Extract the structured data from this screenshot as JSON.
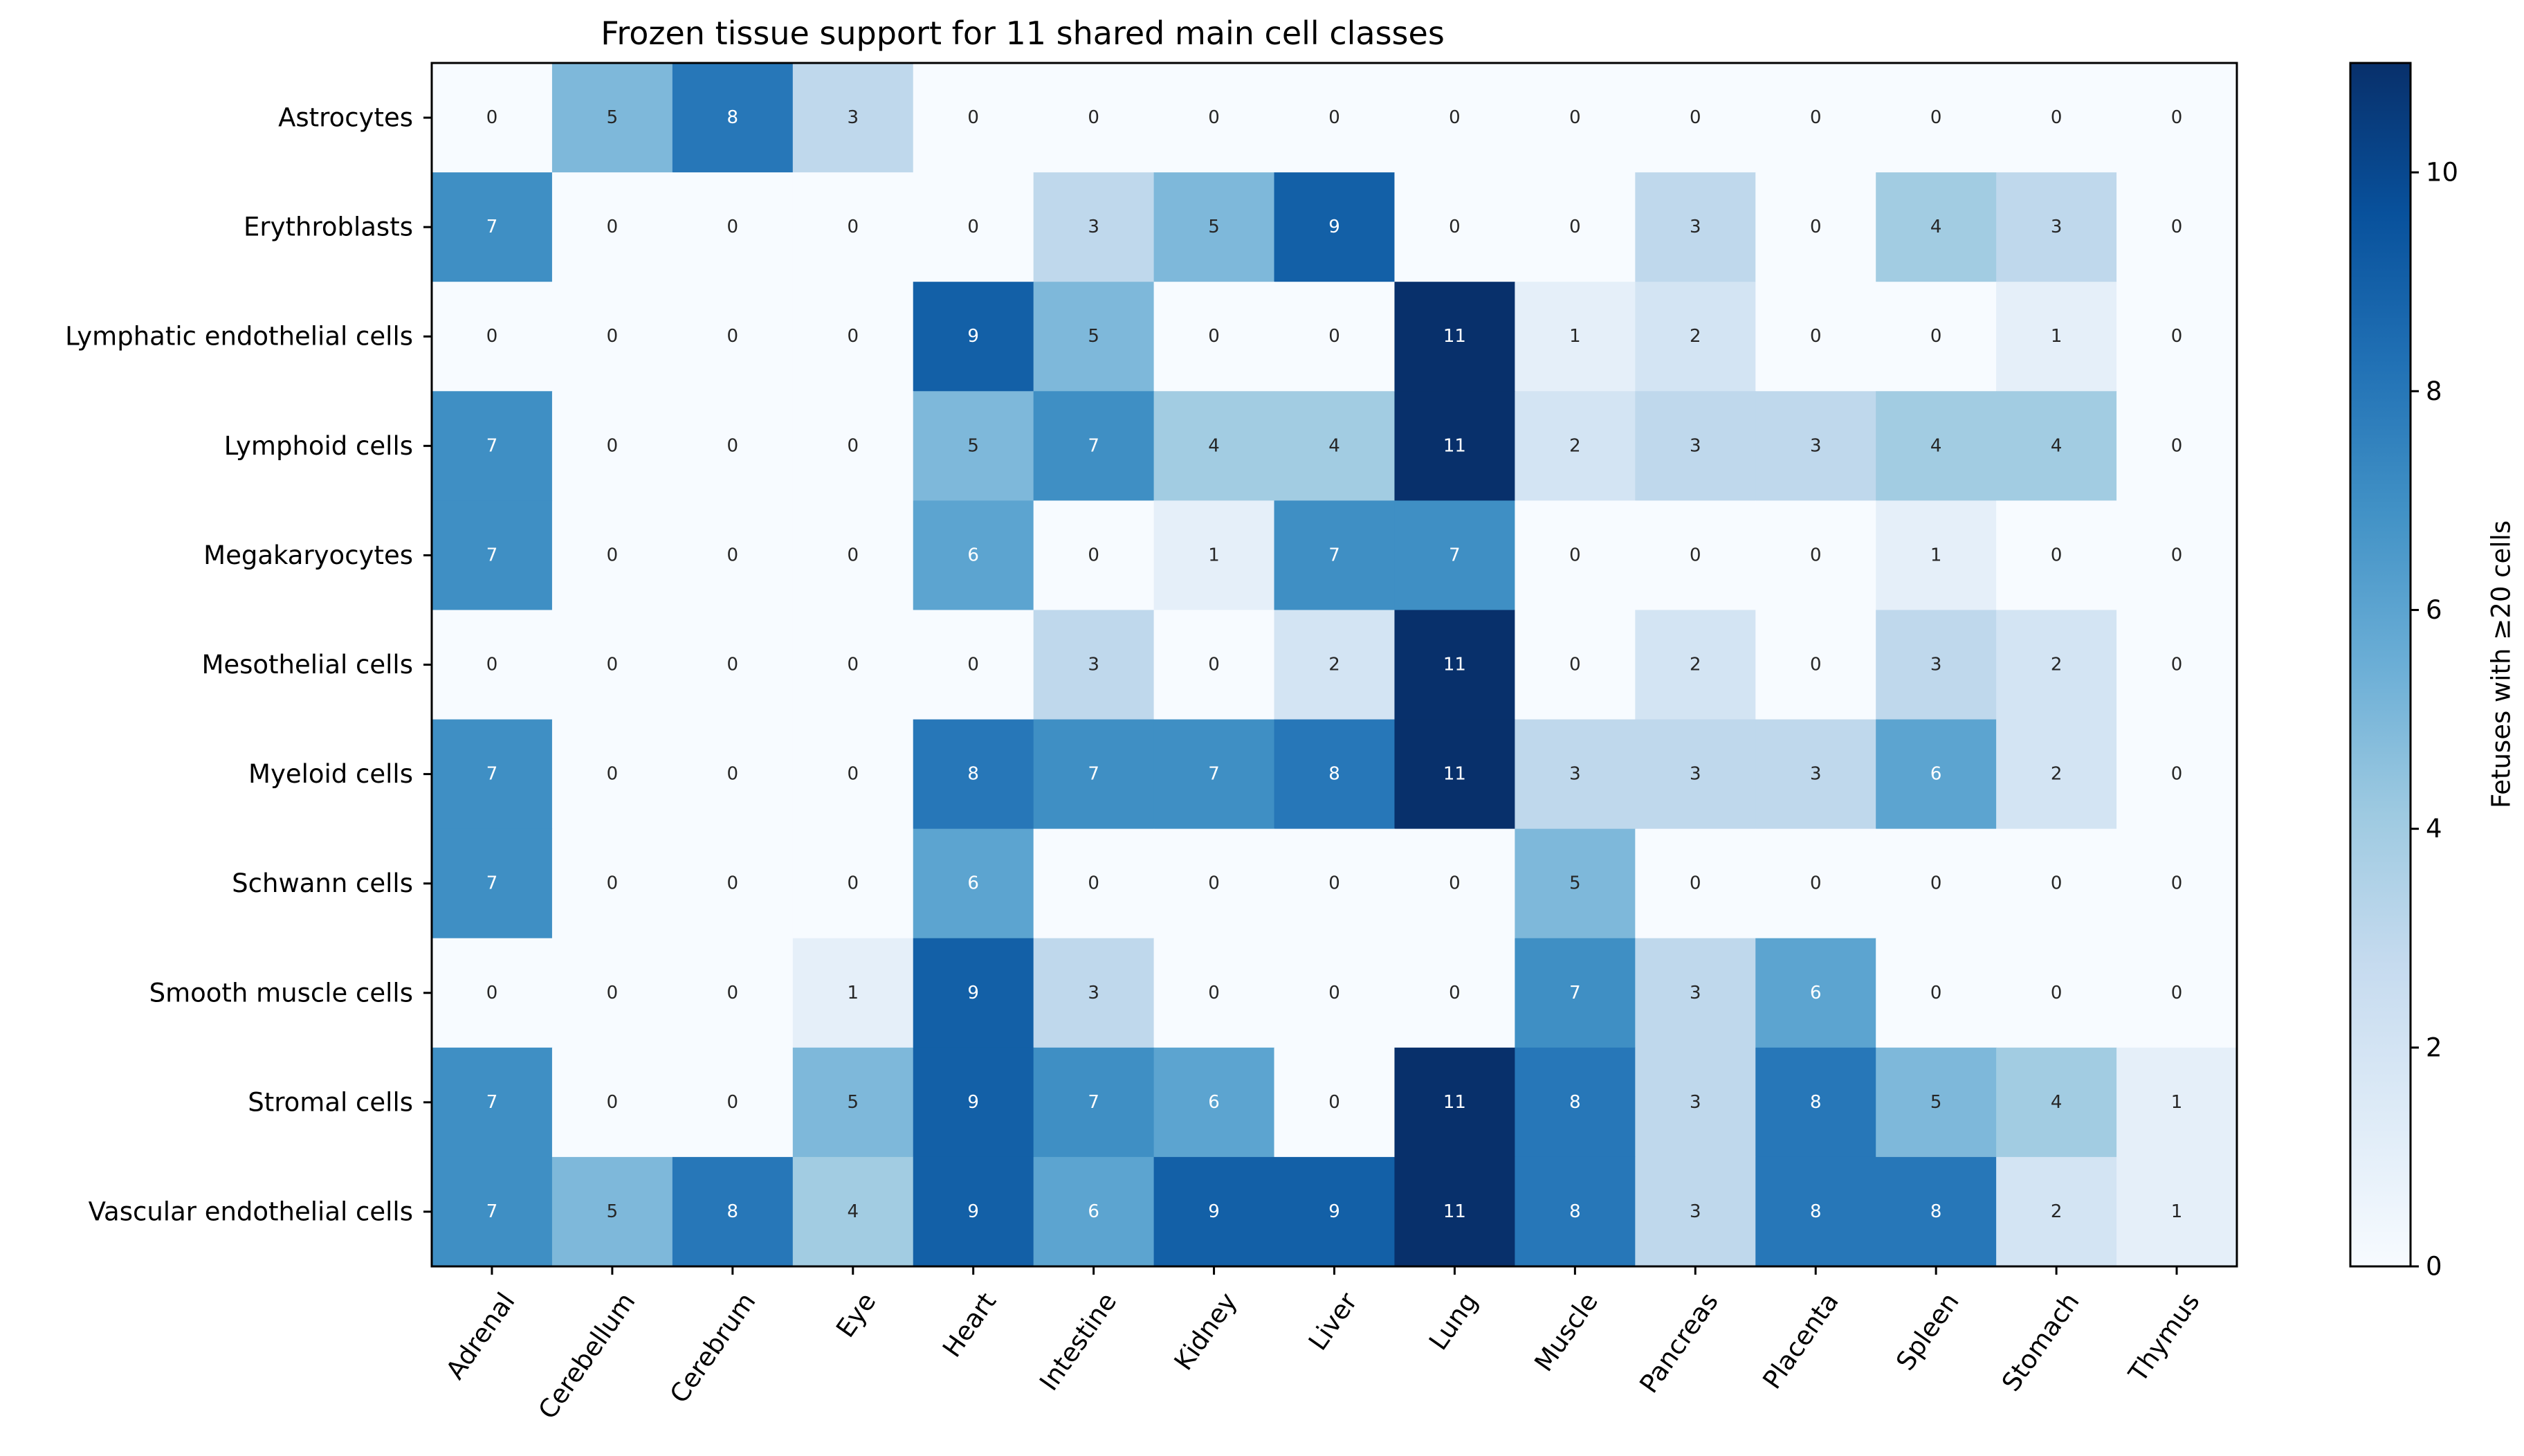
{
  "chart_data": {
    "type": "heatmap",
    "title": "Frozen tissue support for 11 shared main cell classes",
    "xlabel": "",
    "ylabel": "",
    "columns": [
      "Adrenal",
      "Cerebellum",
      "Cerebrum",
      "Eye",
      "Heart",
      "Intestine",
      "Kidney",
      "Liver",
      "Lung",
      "Muscle",
      "Pancreas",
      "Placenta",
      "Spleen",
      "Stomach",
      "Thymus"
    ],
    "rows": [
      "Astrocytes",
      "Erythroblasts",
      "Lymphatic endothelial cells",
      "Lymphoid cells",
      "Megakaryocytes",
      "Mesothelial cells",
      "Myeloid cells",
      "Schwann cells",
      "Smooth muscle cells",
      "Stromal cells",
      "Vascular endothelial cells"
    ],
    "values": [
      [
        0,
        5,
        8,
        3,
        0,
        0,
        0,
        0,
        0,
        0,
        0,
        0,
        0,
        0,
        0
      ],
      [
        7,
        0,
        0,
        0,
        0,
        3,
        5,
        9,
        0,
        0,
        3,
        0,
        4,
        3,
        0
      ],
      [
        0,
        0,
        0,
        0,
        9,
        5,
        0,
        0,
        11,
        1,
        2,
        0,
        0,
        1,
        0
      ],
      [
        7,
        0,
        0,
        0,
        5,
        7,
        4,
        4,
        11,
        2,
        3,
        3,
        4,
        4,
        0
      ],
      [
        7,
        0,
        0,
        0,
        6,
        0,
        1,
        7,
        7,
        0,
        0,
        0,
        1,
        0,
        0
      ],
      [
        0,
        0,
        0,
        0,
        0,
        3,
        0,
        2,
        11,
        0,
        2,
        0,
        3,
        2,
        0
      ],
      [
        7,
        0,
        0,
        0,
        8,
        7,
        7,
        8,
        11,
        3,
        3,
        3,
        6,
        2,
        0
      ],
      [
        7,
        0,
        0,
        0,
        6,
        0,
        0,
        0,
        0,
        5,
        0,
        0,
        0,
        0,
        0
      ],
      [
        0,
        0,
        0,
        1,
        9,
        3,
        0,
        0,
        0,
        7,
        3,
        6,
        0,
        0,
        0
      ],
      [
        7,
        0,
        0,
        5,
        9,
        7,
        6,
        0,
        11,
        8,
        3,
        8,
        5,
        4,
        1
      ],
      [
        7,
        5,
        8,
        4,
        9,
        6,
        9,
        9,
        11,
        8,
        3,
        8,
        8,
        2,
        1
      ]
    ],
    "colormap": "Blues",
    "vmin": 0,
    "vmax": 11,
    "colorbar": {
      "label": "Fetuses with ≥20 cells",
      "ticks": [
        0,
        2,
        4,
        6,
        8,
        10
      ],
      "tick_labels": [
        "0",
        "2",
        "4",
        "6",
        "8",
        "10"
      ]
    },
    "grid": false,
    "legend": "colorbar-right"
  }
}
